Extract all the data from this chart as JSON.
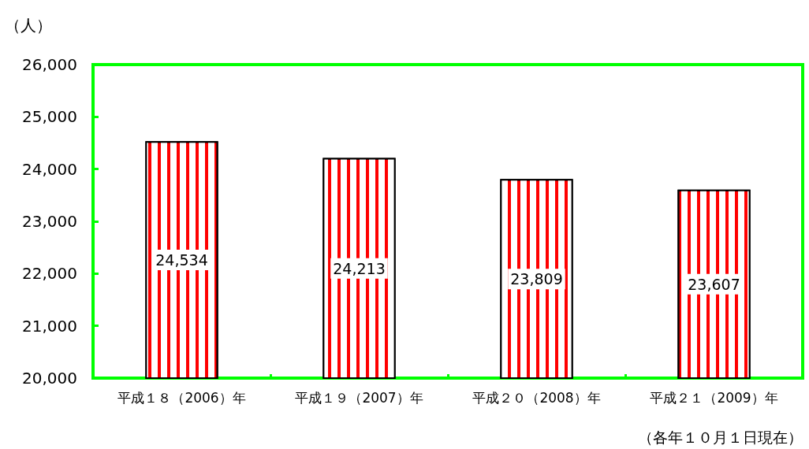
{
  "chart_data": {
    "type": "bar",
    "ylabel": "（人）",
    "categories": [
      "平成１８（2006）年",
      "平成１９（2007）年",
      "平成２０（2008）年",
      "平成２１（2009）年"
    ],
    "values": [
      24534,
      24213,
      23809,
      23607
    ],
    "value_labels": [
      "24,534",
      "24,213",
      "23,809",
      "23,607"
    ],
    "color": "#ff0000",
    "ylim": [
      20000,
      26000
    ],
    "yticks": [
      {
        "value": 20000,
        "label": "20,000"
      },
      {
        "value": 21000,
        "label": "21,000"
      },
      {
        "value": 22000,
        "label": "22,000"
      },
      {
        "value": 23000,
        "label": "23,000"
      },
      {
        "value": 24000,
        "label": "24,000"
      },
      {
        "value": 25000,
        "label": "25,000"
      },
      {
        "value": 26000,
        "label": "26,000"
      }
    ],
    "annotations": [
      "（各年１０月１日現在）"
    ]
  }
}
